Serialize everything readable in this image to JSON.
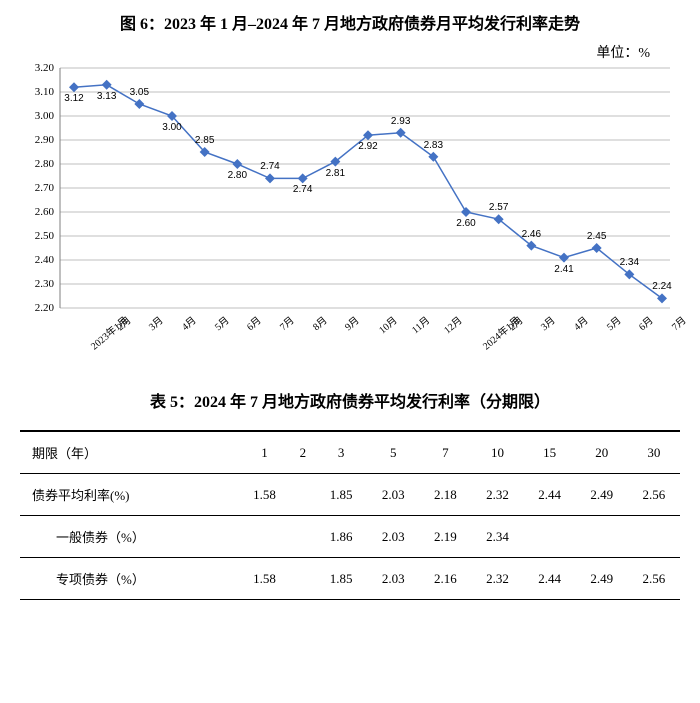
{
  "chart": {
    "type": "line",
    "title": "图 6：2023 年 1 月–2024 年 7 月地方政府债券月平均发行利率走势",
    "unit_label": "单位：%",
    "background_color": "#ffffff",
    "grid_color": "#bfbfbf",
    "axis_color": "#7f7f7f",
    "line_color": "#4472c4",
    "marker_color": "#4472c4",
    "marker_shape": "diamond",
    "marker_size": 5,
    "line_width": 1.5,
    "title_fontsize": 16,
    "tick_fontsize": 11,
    "datalabel_fontsize": 10,
    "ylim": [
      2.2,
      3.2
    ],
    "ytick_step": 0.1,
    "yticks": [
      "2.20",
      "2.30",
      "2.40",
      "2.50",
      "2.60",
      "2.70",
      "2.80",
      "2.90",
      "3.00",
      "3.10",
      "3.20"
    ],
    "categories": [
      "2023年1月",
      "2月",
      "3月",
      "4月",
      "5月",
      "6月",
      "7月",
      "8月",
      "9月",
      "10月",
      "11月",
      "12月",
      "2024年1月",
      "2月",
      "3月",
      "4月",
      "5月",
      "6月",
      "7月"
    ],
    "values": [
      3.12,
      3.13,
      3.05,
      3.0,
      2.85,
      2.8,
      2.74,
      2.74,
      2.81,
      2.92,
      2.93,
      2.83,
      2.6,
      2.57,
      2.46,
      2.41,
      2.45,
      2.34,
      2.24
    ],
    "value_labels": [
      "3.12",
      "3.13",
      "3.05",
      "3.00",
      "2.85",
      "2.80",
      "2.74",
      "2.74",
      "2.81",
      "2.92",
      "2.93",
      "2.83",
      "2.60",
      "2.57",
      "2.46",
      "2.41",
      "2.45",
      "2.34",
      "2.24"
    ],
    "label_pos": [
      "below",
      "below",
      "above",
      "below",
      "above",
      "below",
      "above",
      "below",
      "below",
      "below",
      "above",
      "above",
      "below",
      "above",
      "above",
      "below",
      "above",
      "above",
      "above"
    ]
  },
  "table": {
    "title": "表 5：2024 年 7 月地方政府债券平均发行利率（分期限）",
    "header_label": "期限（年）",
    "columns": [
      "1",
      "2",
      "3",
      "5",
      "7",
      "10",
      "15",
      "20",
      "30"
    ],
    "rows": [
      {
        "label": "债券平均利率(%)",
        "indent": false,
        "cells": [
          "1.58",
          "",
          "1.85",
          "2.03",
          "2.18",
          "2.32",
          "2.44",
          "2.49",
          "2.56"
        ]
      },
      {
        "label": "一般债券（%）",
        "indent": true,
        "cells": [
          "",
          "",
          "1.86",
          "2.03",
          "2.19",
          "2.34",
          "",
          "",
          ""
        ]
      },
      {
        "label": "专项债券（%）",
        "indent": true,
        "cells": [
          "1.58",
          "",
          "1.85",
          "2.03",
          "2.16",
          "2.32",
          "2.44",
          "2.49",
          "2.56"
        ]
      }
    ],
    "border_color": "#000000",
    "fontsize": 13,
    "title_fontsize": 16
  }
}
